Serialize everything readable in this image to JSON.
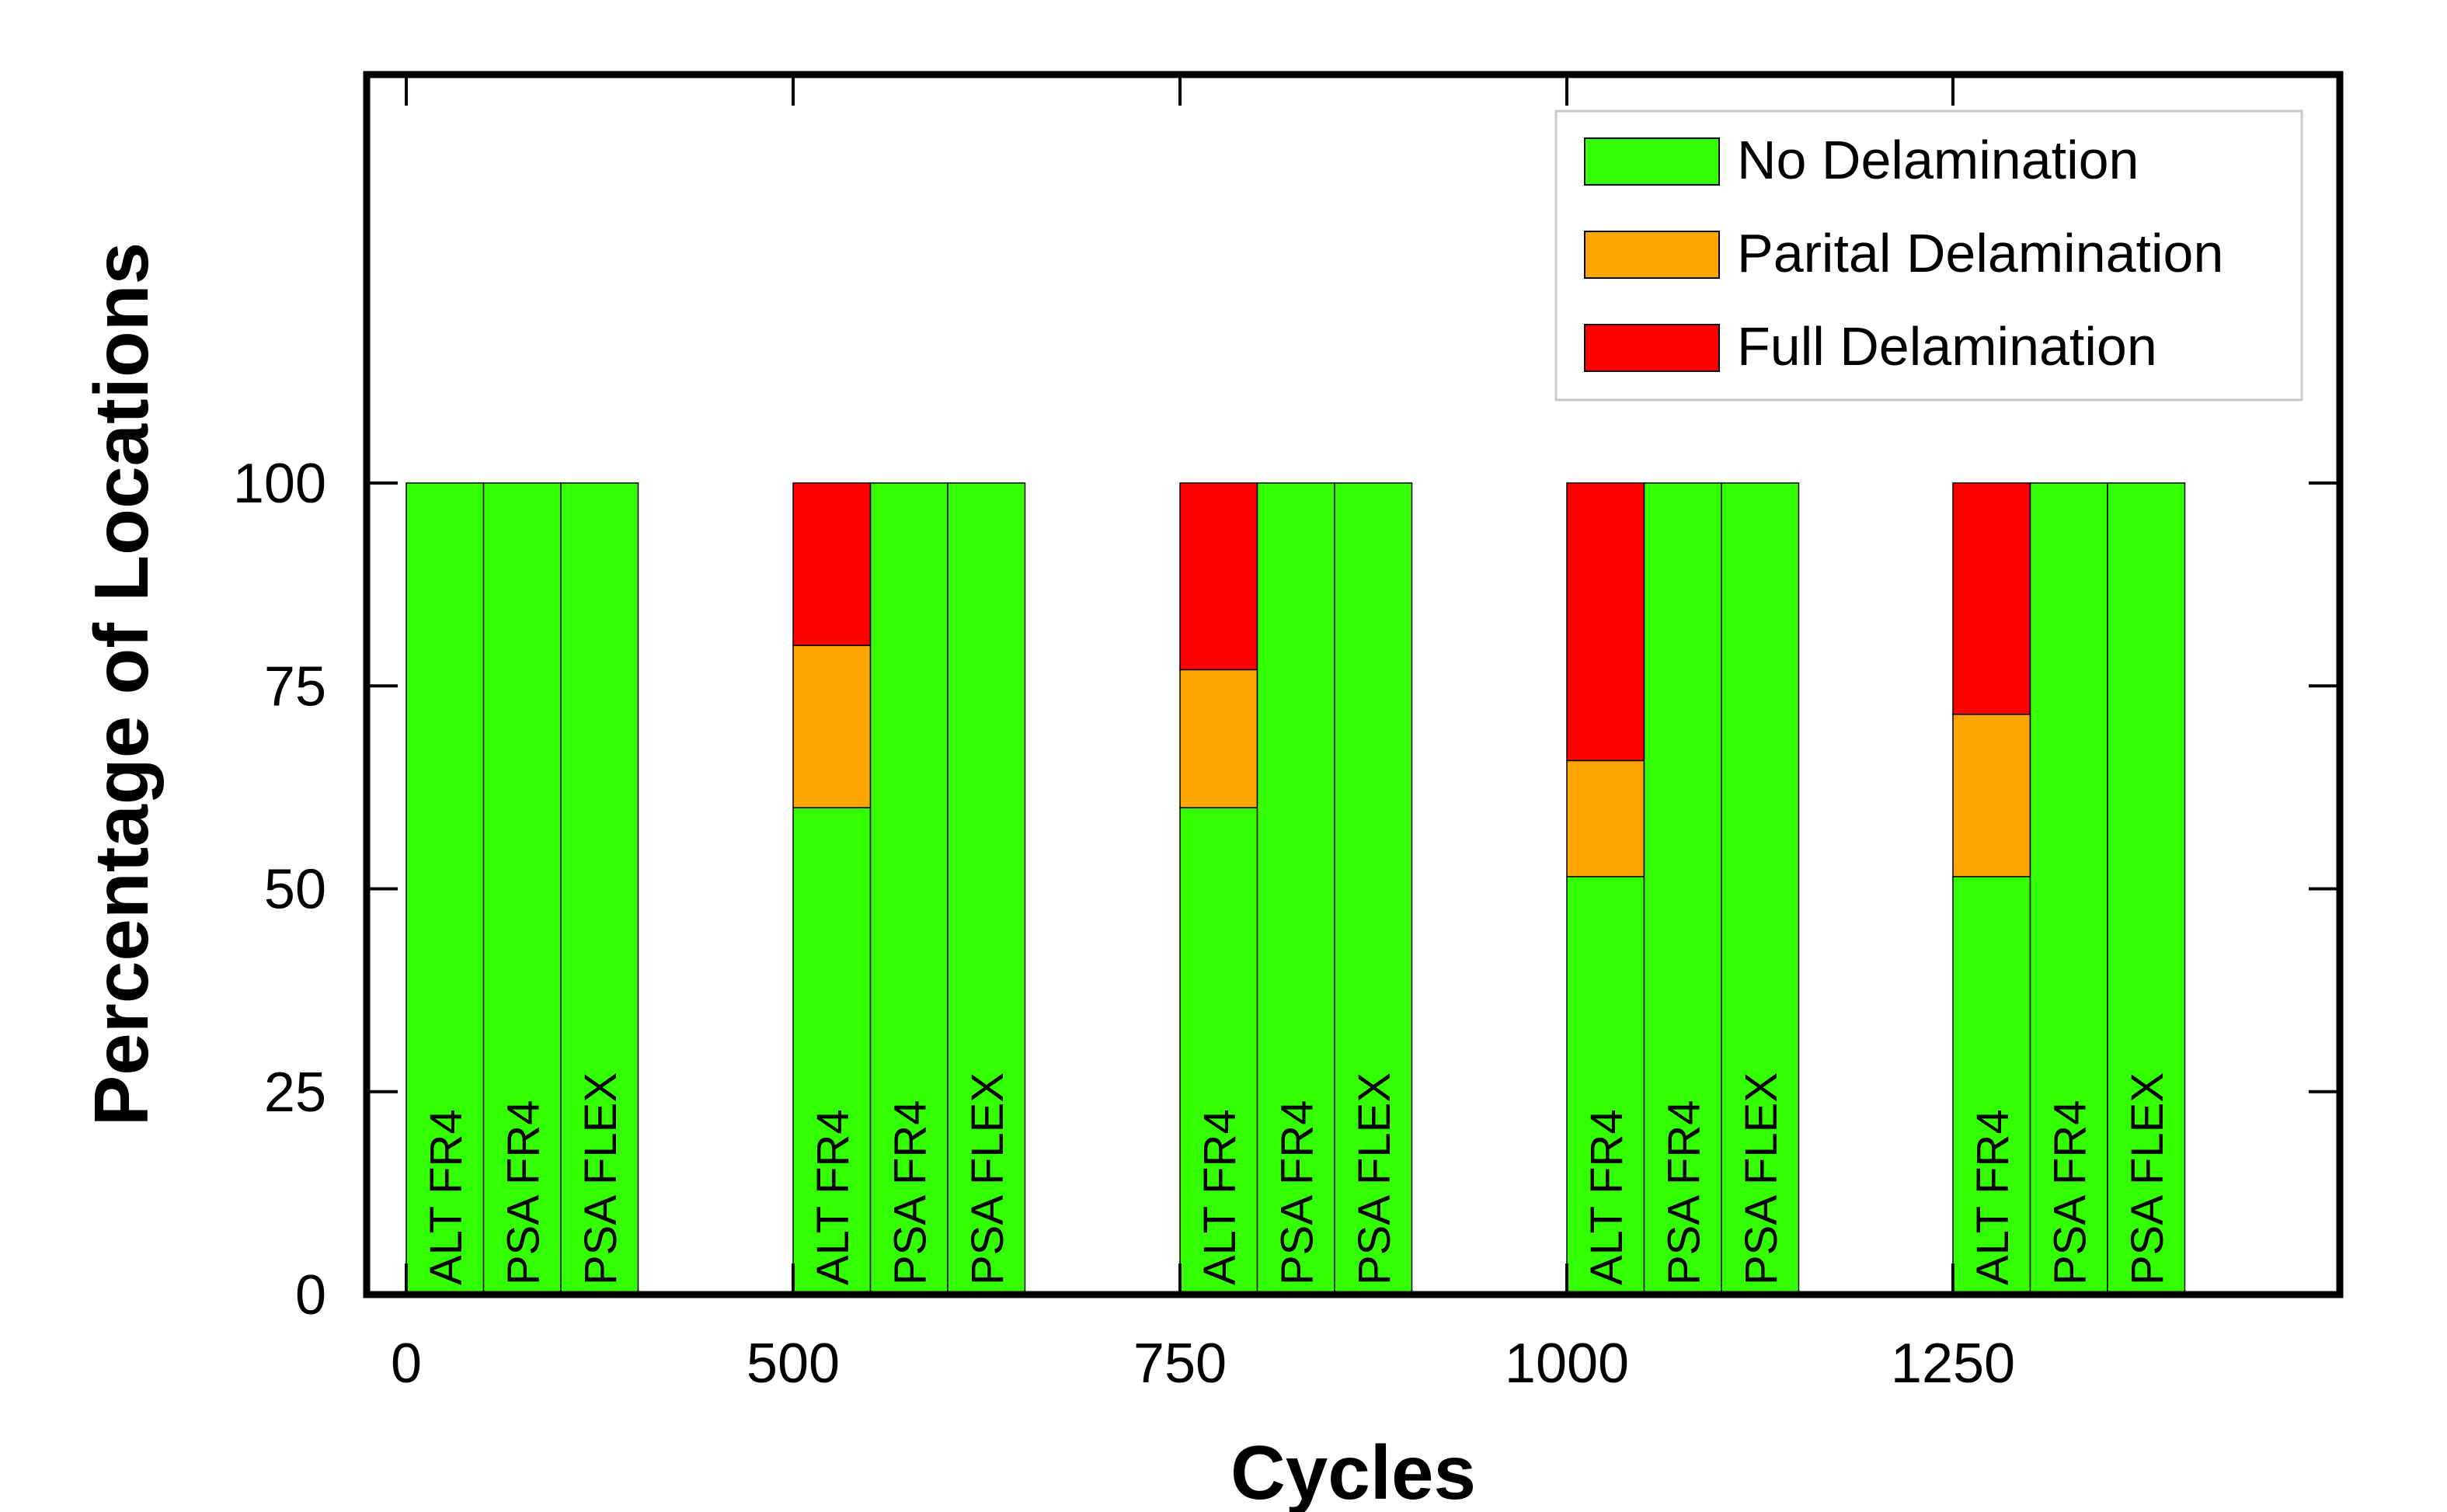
{
  "chart_data": {
    "type": "bar",
    "stacked": true,
    "title": "",
    "xlabel": "Cycles",
    "ylabel": "Percentage of Locations",
    "ylim": [
      0,
      100
    ],
    "y_ticks": [
      "0",
      "25",
      "50",
      "75",
      "100"
    ],
    "categories": [
      "0",
      "500",
      "750",
      "1000",
      "1250"
    ],
    "bar_labels": [
      "ALT FR4",
      "PSA FR4",
      "PSA FLEX"
    ],
    "groups": [
      {
        "category": "0",
        "bars": [
          {
            "label": "ALT FR4",
            "no": 100,
            "partial": 0,
            "full": 0
          },
          {
            "label": "PSA FR4",
            "no": 100,
            "partial": 0,
            "full": 0
          },
          {
            "label": "PSA FLEX",
            "no": 100,
            "partial": 0,
            "full": 0
          }
        ]
      },
      {
        "category": "500",
        "bars": [
          {
            "label": "ALT FR4",
            "no": 60,
            "partial": 20,
            "full": 20
          },
          {
            "label": "PSA FR4",
            "no": 100,
            "partial": 0,
            "full": 0
          },
          {
            "label": "PSA FLEX",
            "no": 100,
            "partial": 0,
            "full": 0
          }
        ]
      },
      {
        "category": "750",
        "bars": [
          {
            "label": "ALT FR4",
            "no": 60,
            "partial": 17,
            "full": 23
          },
          {
            "label": "PSA FR4",
            "no": 100,
            "partial": 0,
            "full": 0
          },
          {
            "label": "PSA FLEX",
            "no": 100,
            "partial": 0,
            "full": 0
          }
        ]
      },
      {
        "category": "1000",
        "bars": [
          {
            "label": "ALT FR4",
            "no": 51.5,
            "partial": 14.3,
            "full": 34.2
          },
          {
            "label": "PSA FR4",
            "no": 100,
            "partial": 0,
            "full": 0
          },
          {
            "label": "PSA FLEX",
            "no": 100,
            "partial": 0,
            "full": 0
          }
        ]
      },
      {
        "category": "1250",
        "bars": [
          {
            "label": "ALT FR4",
            "no": 51.5,
            "partial": 20,
            "full": 28.5
          },
          {
            "label": "PSA FR4",
            "no": 100,
            "partial": 0,
            "full": 0
          },
          {
            "label": "PSA FLEX",
            "no": 100,
            "partial": 0,
            "full": 0
          }
        ]
      }
    ],
    "series": [
      {
        "key": "no",
        "name": "No Delamination",
        "color": "#33ff00"
      },
      {
        "key": "partial",
        "name": "Parital Delamination",
        "color": "#ffa500"
      },
      {
        "key": "full",
        "name": "Full Delamination",
        "color": "#ff0000"
      }
    ],
    "legend_position": "top-right",
    "grid": false
  }
}
